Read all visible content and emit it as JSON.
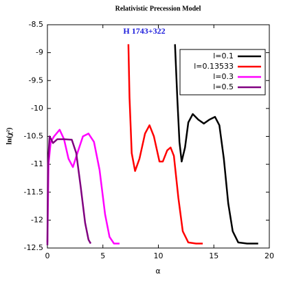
{
  "chart_data": {
    "type": "line",
    "title": "Relativistic Precession Model",
    "annotation": "H 1743+322",
    "annotation_color": "#1a1adb",
    "xlabel": "α",
    "ylabel": "ln(χ²)",
    "xlim": [
      0,
      20
    ],
    "xticks": [
      0,
      5,
      10,
      15,
      20
    ],
    "ylim": [
      -12.5,
      -8.5
    ],
    "yticks": [
      -8.5,
      -9,
      -9.5,
      -10,
      -10.5,
      -11,
      -11.5,
      -12,
      -12.5
    ],
    "legend": "top-right",
    "series": [
      {
        "name": "l=0.1",
        "color": "#000000",
        "x": [
          11.5,
          11.7,
          11.9,
          12.1,
          12.4,
          12.7,
          13.1,
          13.6,
          14.1,
          14.6,
          15.1,
          15.5,
          15.9,
          16.3,
          16.7,
          17.2,
          18,
          19
        ],
        "values": [
          -8.85,
          -9.8,
          -10.6,
          -10.95,
          -10.7,
          -10.25,
          -10.1,
          -10.2,
          -10.27,
          -10.2,
          -10.15,
          -10.3,
          -10.9,
          -11.7,
          -12.2,
          -12.4,
          -12.42,
          -12.42
        ]
      },
      {
        "name": "l=0.13533",
        "color": "#ff0000",
        "x": [
          7.3,
          7.4,
          7.6,
          7.9,
          8.3,
          8.8,
          9.2,
          9.6,
          10.1,
          10.4,
          10.8,
          11.1,
          11.4,
          11.8,
          12.2,
          12.7,
          13.4,
          14
        ],
        "values": [
          -8.85,
          -9.8,
          -10.8,
          -11.12,
          -10.9,
          -10.45,
          -10.3,
          -10.5,
          -10.95,
          -10.95,
          -10.75,
          -10.7,
          -10.85,
          -11.6,
          -12.2,
          -12.4,
          -12.42,
          -12.42
        ]
      },
      {
        "name": "l=0.3",
        "color": "#ff00ff",
        "x": [
          0,
          0.1,
          0.3,
          0.6,
          1.1,
          1.5,
          1.9,
          2.3,
          2.7,
          3.2,
          3.7,
          4.2,
          4.7,
          5.2,
          5.6,
          6,
          6.5
        ],
        "values": [
          -12.4,
          -11,
          -10.6,
          -10.5,
          -10.38,
          -10.55,
          -10.9,
          -11.05,
          -10.8,
          -10.5,
          -10.45,
          -10.6,
          -11.1,
          -11.9,
          -12.3,
          -12.42,
          -12.42
        ]
      },
      {
        "name": "l=0.5",
        "color": "#800080",
        "x": [
          0,
          0.05,
          0.2,
          0.5,
          0.9,
          1.5,
          2.2,
          2.6,
          3,
          3.4,
          3.7,
          3.9
        ],
        "values": [
          -12.45,
          -11,
          -10.5,
          -10.62,
          -10.55,
          -10.55,
          -10.56,
          -10.8,
          -11.4,
          -12.05,
          -12.35,
          -12.42
        ]
      }
    ]
  }
}
